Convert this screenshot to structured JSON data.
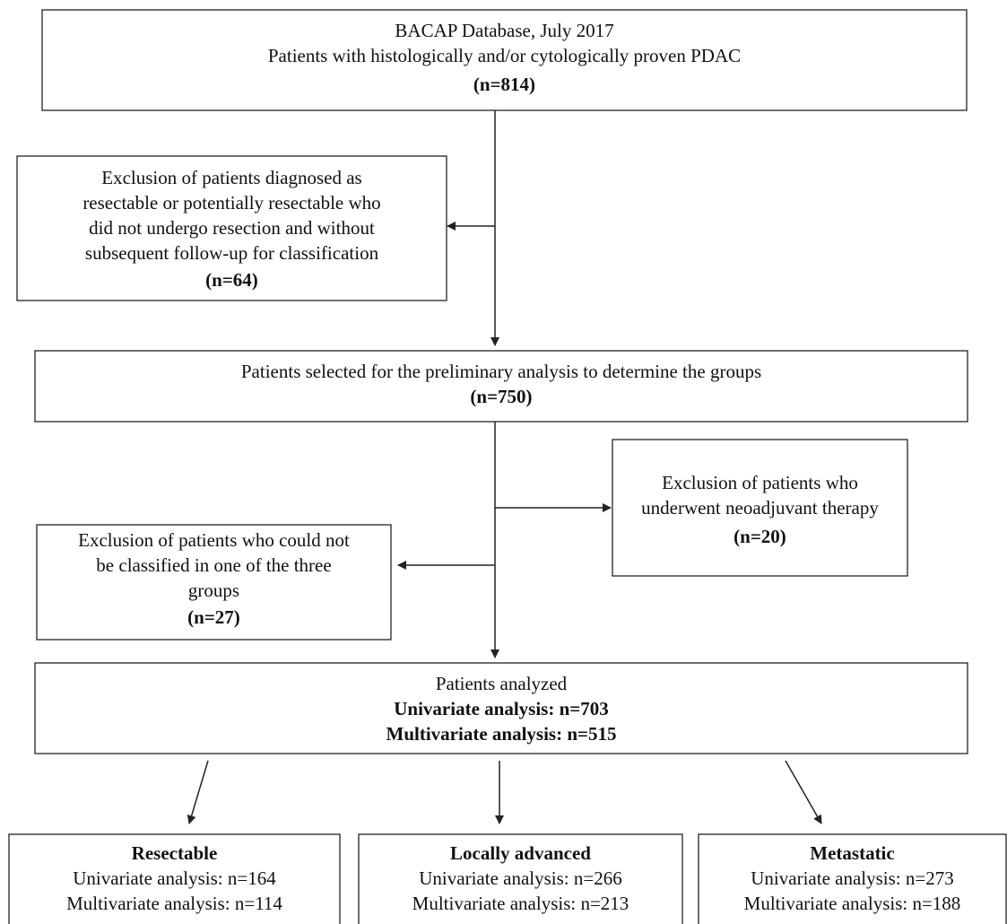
{
  "nodes": [
    {
      "lines": [
        "BACAP Database, July 2017",
        "Patients with histologically and/or cytologically proven PDAC",
        "(n=814)"
      ]
    },
    {
      "lines": [
        "Exclusion of patients diagnosed as",
        "resectable or potentially resectable who",
        "did not undergo resection and without",
        "subsequent follow-up for classification",
        "(n=64)"
      ]
    },
    {
      "lines": [
        "Patients selected for the preliminary analysis to determine the groups",
        "(n=750)"
      ]
    },
    {
      "lines": [
        "Exclusion of patients who",
        "underwent neoadjuvant therapy",
        "(n=20)"
      ]
    },
    {
      "lines": [
        "Exclusion of patients who could not",
        "be classified in one of the three",
        "groups",
        "(n=27)"
      ]
    },
    {
      "lines": [
        "Patients analyzed",
        "Univariate analysis: n=703",
        "Multivariate analysis: n=515"
      ]
    },
    {
      "lines": [
        "Resectable",
        "Univariate analysis: n=164",
        "Multivariate analysis: n=114"
      ]
    },
    {
      "lines": [
        "Locally advanced",
        "Univariate analysis: n=266",
        "Multivariate analysis: n=213"
      ]
    },
    {
      "lines": [
        "Metastatic",
        "Univariate analysis: n=273",
        "Multivariate analysis: n=188"
      ]
    }
  ]
}
